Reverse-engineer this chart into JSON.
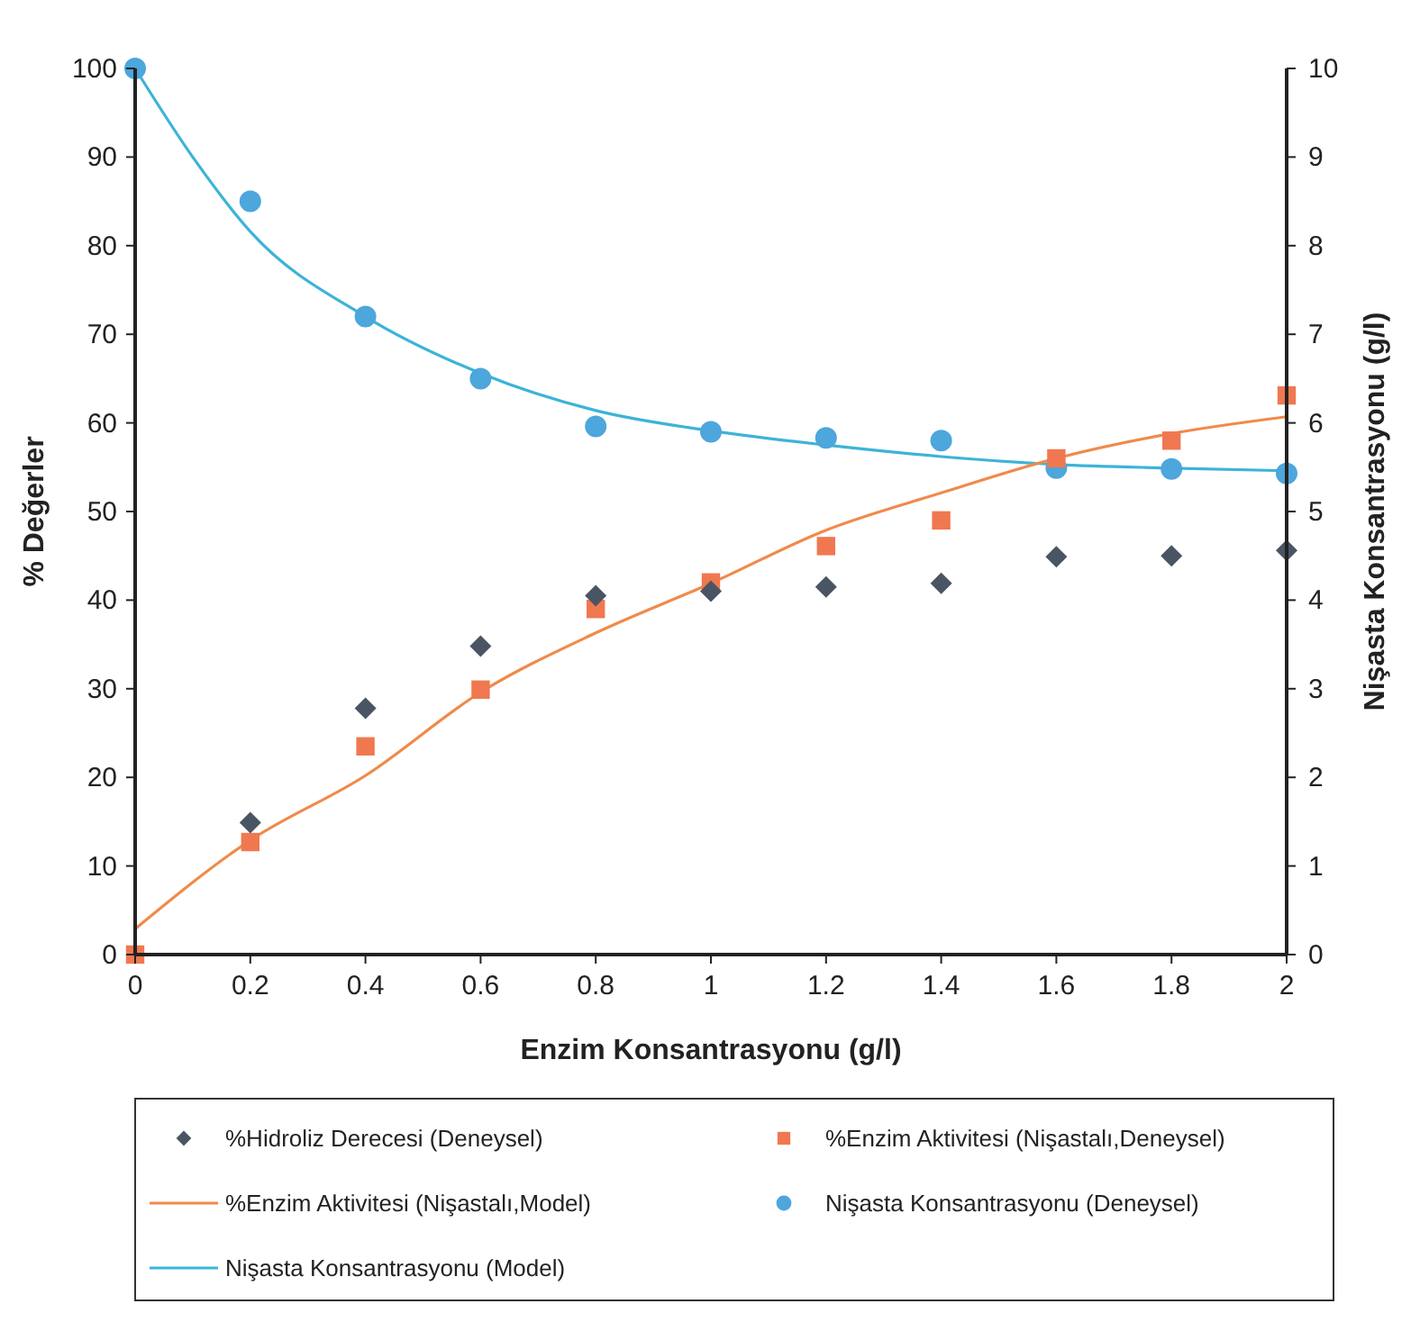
{
  "chart_data": {
    "type": "scatter",
    "xlabel": "Enzim Konsantrasyonu (g/l)",
    "ylabel": "% Değerler",
    "y2label": "Nişasta Konsantrasyonu (g/l)",
    "x": [
      0,
      0.2,
      0.4,
      0.6,
      0.8,
      1,
      1.2,
      1.4,
      1.6,
      1.8,
      2
    ],
    "xlim": [
      0,
      2
    ],
    "xticks": [
      0,
      0.2,
      0.4,
      0.6,
      0.8,
      1,
      1.2,
      1.4,
      1.6,
      1.8,
      2
    ],
    "ylim": [
      0,
      100
    ],
    "yticks": [
      0,
      10,
      20,
      30,
      40,
      50,
      60,
      70,
      80,
      90,
      100
    ],
    "y2lim": [
      0,
      10
    ],
    "y2ticks": [
      0,
      1,
      2,
      3,
      4,
      5,
      6,
      7,
      8,
      9,
      10
    ],
    "grid": false,
    "legend": "bottom",
    "series": [
      {
        "name": "%Hidroliz Derecesi (Deneysel)",
        "marker": "diamond",
        "color": "#4a5563",
        "values": [
          null,
          14.9,
          27.8,
          34.8,
          40.5,
          41,
          41.5,
          41.9,
          44.9,
          45,
          45.6
        ]
      },
      {
        "name": "%Enzim Aktivitesi (Nişastalı,Deneysel)",
        "marker": "square",
        "color": "#f07850",
        "values": [
          0,
          12.7,
          23.5,
          29.9,
          39,
          42,
          46.1,
          49,
          56,
          58,
          63.1
        ]
      },
      {
        "name": "%Enzim Aktivitesi (Nişastalı,Model)",
        "type": "line",
        "marker": "none",
        "color": "#f08a4b",
        "values": [
          2.9,
          12.9,
          20.2,
          29.6,
          36.3,
          41.9,
          47.9,
          52.1,
          56,
          58.8,
          60.7
        ]
      },
      {
        "name": "Nişasta Konsantrasyonu (Deneysel)",
        "marker": "circle",
        "axis": "y2",
        "color": "#4da6dc",
        "values": [
          10,
          8.5,
          7.2,
          6.5,
          5.96,
          5.9,
          5.83,
          5.8,
          5.49,
          5.48,
          5.43
        ]
      },
      {
        "name": "Nişasta Konsantrasyonu (Model)",
        "type": "line",
        "marker": "none",
        "axis": "y2",
        "color": "#3db3d8",
        "x": [
          0,
          0.1,
          0.2,
          0.4,
          0.6,
          0.8,
          1,
          1.2,
          1.4,
          1.6,
          1.8,
          2
        ],
        "values": [
          10,
          9,
          8.16,
          7.2,
          6.56,
          6.14,
          5.91,
          5.75,
          5.62,
          5.53,
          5.49,
          5.46
        ]
      }
    ]
  }
}
